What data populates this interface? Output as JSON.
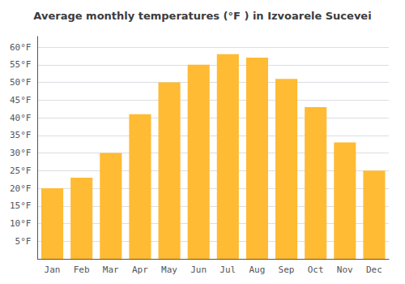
{
  "chart_data": {
    "type": "bar",
    "title": "Average monthly temperatures (°F ) in Izvoarele Sucevei",
    "categories": [
      "Jan",
      "Feb",
      "Mar",
      "Apr",
      "May",
      "Jun",
      "Jul",
      "Aug",
      "Sep",
      "Oct",
      "Nov",
      "Dec"
    ],
    "values": [
      20,
      23,
      30,
      41,
      50,
      55,
      58,
      57,
      51,
      43,
      33,
      25
    ],
    "color": "#FFBB33",
    "ylim": [
      0,
      63
    ],
    "yticks": [
      {
        "value": 5,
        "label": "5°F"
      },
      {
        "value": 10,
        "label": "10°F"
      },
      {
        "value": 15,
        "label": "15°F"
      },
      {
        "value": 20,
        "label": "20°F"
      },
      {
        "value": 25,
        "label": "25°F"
      },
      {
        "value": 30,
        "label": "30°F"
      },
      {
        "value": 35,
        "label": "35°F"
      },
      {
        "value": 40,
        "label": "40°F"
      },
      {
        "value": 45,
        "label": "45°F"
      },
      {
        "value": 50,
        "label": "50°F"
      },
      {
        "value": 55,
        "label": "55°F"
      },
      {
        "value": 60,
        "label": "60°F"
      }
    ],
    "grid": true
  }
}
